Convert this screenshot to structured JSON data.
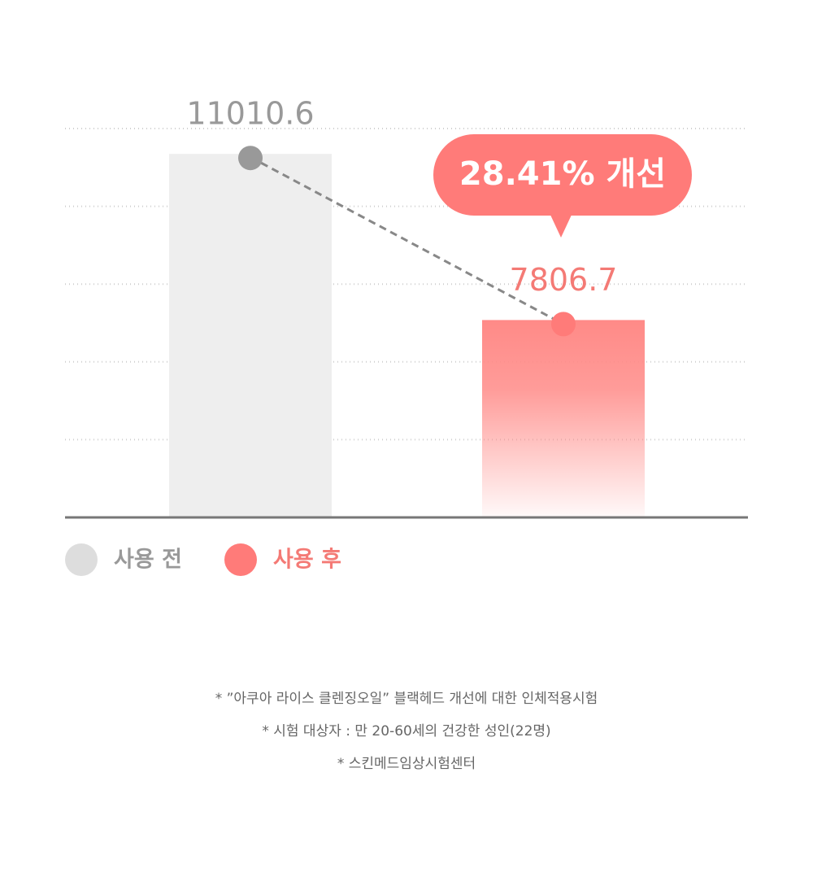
{
  "chart_data": {
    "type": "bar",
    "categories": [
      "사용 전",
      "사용 후"
    ],
    "values": [
      11010.6,
      7806.7
    ],
    "colors": [
      "#eeeeee",
      "#ff8a87"
    ],
    "legend_colors": [
      "#dddddd",
      "#ff7b79"
    ],
    "label_colors": [
      "#999999",
      "#f47a75"
    ],
    "ylim": [
      4000,
      11500
    ],
    "yticks": [
      4000,
      5500,
      7000,
      8500,
      10000,
      11500
    ],
    "grid": true,
    "annotation": "28.41% 개선",
    "notes": [
      "* ”아쿠아 라이스 클렌징오일” 블랙헤드 개선에 대한 인체적용시험",
      "* 시험 대상자 : 만 20-60세의 건강한 성인(22명)",
      "* 스킨메드임상시험센터"
    ]
  }
}
